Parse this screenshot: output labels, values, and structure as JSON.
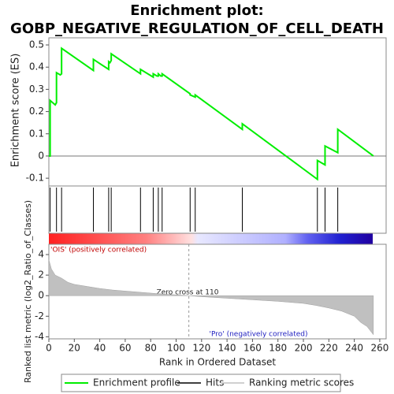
{
  "chart_data": [
    {
      "type": "line",
      "title": "Enrichment plot:",
      "subtitle": "GOBP_NEGATIVE_REGULATION_OF_CELL_DEATH",
      "ylabel": "Enrichment score (ES)",
      "xlim": [
        0,
        265
      ],
      "ylim": [
        -0.135,
        0.532
      ],
      "yticks": [
        -0.1,
        0.0,
        0.1,
        0.2,
        0.3,
        0.4,
        0.5
      ],
      "x": [
        0,
        1,
        1,
        5,
        6,
        6,
        9,
        10,
        10,
        35,
        35,
        47,
        47,
        48,
        49,
        49,
        72,
        72,
        82,
        82,
        85,
        86,
        86,
        88,
        89,
        89,
        111,
        111,
        115,
        115,
        152,
        152,
        211,
        211,
        217,
        217,
        227,
        227,
        255
      ],
      "series": [
        {
          "name": "Enrichment profile",
          "color": "#00ee00",
          "values": [
            0,
            0,
            0.25,
            0.23,
            0.24,
            0.375,
            0.365,
            0.37,
            0.485,
            0.385,
            0.435,
            0.39,
            0.425,
            0.42,
            0.43,
            0.46,
            0.37,
            0.39,
            0.355,
            0.37,
            0.36,
            0.36,
            0.37,
            0.36,
            0.36,
            0.37,
            0.28,
            0.275,
            0.265,
            0.275,
            0.12,
            0.145,
            -0.105,
            -0.02,
            -0.04,
            0.045,
            0.015,
            0.12,
            0
          ]
        }
      ]
    },
    {
      "type": "rug",
      "name": "Hits",
      "color": "#000000",
      "xlim": [
        0,
        265
      ],
      "x": [
        1,
        6,
        10,
        35,
        47,
        49,
        72,
        82,
        86,
        89,
        111,
        115,
        152,
        211,
        217,
        227
      ]
    },
    {
      "type": "area",
      "xlabel": "Rank in Ordered Dataset",
      "ylabel": "Ranked list metric (log2_Ratio_of_Classes)",
      "xlim": [
        0,
        265
      ],
      "xticks": [
        0,
        20,
        40,
        60,
        80,
        100,
        120,
        140,
        160,
        180,
        200,
        220,
        240,
        260
      ],
      "ylim": [
        -4.2,
        5
      ],
      "yticks": [
        -4,
        -2,
        0,
        2,
        4
      ],
      "x": [
        0,
        2,
        5,
        10,
        15,
        20,
        30,
        40,
        50,
        60,
        70,
        80,
        90,
        100,
        110,
        120,
        140,
        160,
        180,
        200,
        210,
        220,
        230,
        240,
        245,
        250,
        255
      ],
      "series": [
        {
          "name": "Ranking metric scores",
          "color": "#c0c0c0",
          "values": [
            3.5,
            2.6,
            2.0,
            1.7,
            1.3,
            1.1,
            0.9,
            0.7,
            0.55,
            0.45,
            0.35,
            0.25,
            0.15,
            0.08,
            0,
            -0.1,
            -0.25,
            -0.4,
            -0.55,
            -0.75,
            -0.95,
            -1.2,
            -1.5,
            -2.0,
            -2.6,
            -3.0,
            -3.8
          ]
        }
      ],
      "zero_cross": 110,
      "annotations": [
        "'OIS' (positively correlated)",
        "Zero cross at 110",
        "'Pro' (negatively correlated)"
      ]
    }
  ]
}
